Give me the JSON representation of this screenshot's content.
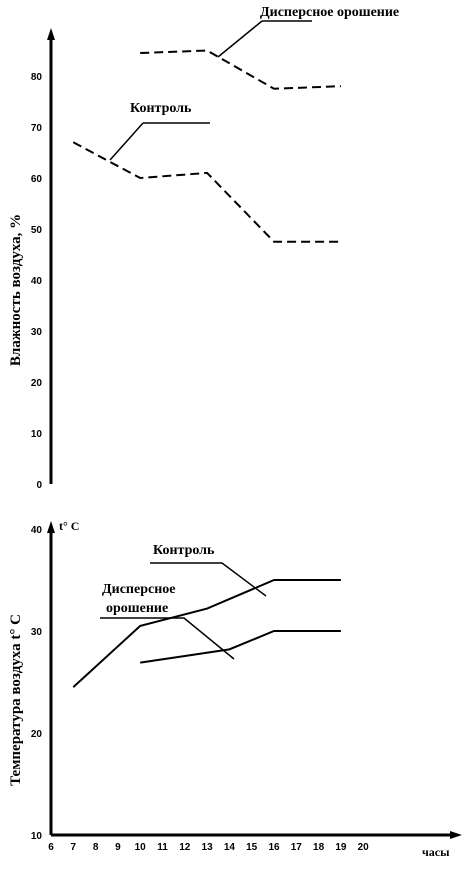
{
  "chart_data": [
    {
      "type": "line",
      "ylabel": "Влажность воздуха, %",
      "ylim": [
        0,
        80
      ],
      "yticks": [
        0,
        10,
        20,
        30,
        40,
        50,
        60,
        70,
        80
      ],
      "x": [
        10,
        13,
        16,
        19
      ],
      "line_style": "dashed",
      "series": [
        {
          "name": "Дисперсное орошение",
          "x": [
            10,
            13,
            16,
            19
          ],
          "values": [
            84.5,
            85,
            77.5,
            78
          ]
        },
        {
          "name": "Контроль",
          "x": [
            7,
            10,
            13,
            16,
            19
          ],
          "values": [
            67,
            60,
            61,
            47.5,
            47.5
          ]
        }
      ]
    },
    {
      "type": "line",
      "ylabel": "Температура воздуха t° C",
      "unit_label": "t° C",
      "xlabel": "часы",
      "ylim": [
        10,
        40
      ],
      "yticks": [
        10,
        20,
        30,
        40
      ],
      "xticks": [
        6,
        7,
        8,
        9,
        10,
        11,
        12,
        13,
        14,
        15,
        16,
        17,
        18,
        19,
        20
      ],
      "line_style": "solid",
      "series": [
        {
          "name": "Контроль",
          "x": [
            7,
            10,
            13,
            16,
            19
          ],
          "values": [
            24.5,
            30.5,
            32.2,
            35,
            35
          ]
        },
        {
          "name": "Дисперсное орошение",
          "x": [
            10,
            14,
            16,
            19
          ],
          "values": [
            26.9,
            28.2,
            30,
            30
          ]
        }
      ]
    }
  ]
}
